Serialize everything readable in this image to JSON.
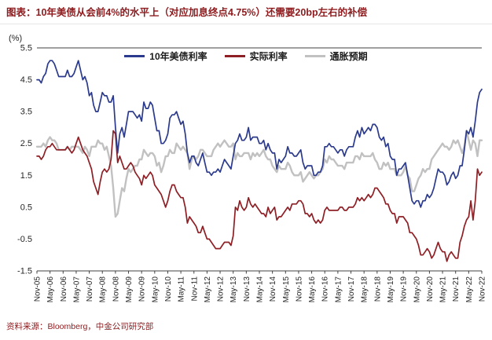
{
  "title": "图表：10年美债从会前4%的水平上（对应加息终点4.75%）还需要20bp左右的补偿",
  "source": "资料来源：Bloomberg，中金公司研究部",
  "colors": {
    "title_red": "#8E1B1E",
    "source_red": "#8E1B1E",
    "axis_line": "#404040",
    "tick_label": "#262626",
    "nominal_blue": "#2B3A8C",
    "real_red": "#8E1F25",
    "breakeven_gray": "#C1C1C1"
  },
  "chart_data": {
    "type": "line",
    "title": "10年美债从会前4%的水平上（对应加息终点4.75%）还需要20bp左右的补偿",
    "xlabel": "",
    "ylabel": "(%)",
    "ylim": [
      -1.5,
      5.5
    ],
    "yticks": [
      5.5,
      4.5,
      3.5,
      2.5,
      1.5,
      0.5,
      -0.5,
      -1.5
    ],
    "grid": false,
    "legend_position": "top-center",
    "x_label_every": 6,
    "x_frequency": "monthly",
    "x_tick_labels": [
      "Nov-05",
      "May-06",
      "Nov-06",
      "May-07",
      "Nov-07",
      "May-08",
      "Nov-08",
      "May-09",
      "Nov-09",
      "May-10",
      "Nov-10",
      "May-11",
      "Nov-11",
      "May-12",
      "Nov-12",
      "May-13",
      "Nov-13",
      "May-14",
      "Nov-14",
      "May-15",
      "Nov-15",
      "May-16",
      "Nov-16",
      "May-17",
      "Nov-17",
      "May-18",
      "Nov-18",
      "May-19",
      "Nov-19",
      "May-20",
      "Nov-20",
      "May-21",
      "Nov-21",
      "May-22",
      "Nov-22"
    ],
    "series": [
      {
        "name": "10年美债利率",
        "color": "#2B3A8C",
        "values": [
          4.5,
          4.5,
          4.4,
          4.6,
          4.7,
          5.0,
          5.1,
          5.1,
          5.0,
          4.8,
          4.6,
          4.6,
          4.6,
          4.6,
          4.8,
          4.6,
          4.6,
          4.7,
          4.9,
          5.1,
          4.8,
          4.5,
          4.6,
          4.4,
          4.0,
          4.1,
          3.7,
          3.5,
          3.5,
          3.8,
          4.1,
          4.0,
          4.0,
          3.8,
          3.8,
          4.0,
          3.0,
          2.2,
          2.8,
          3.0,
          2.7,
          3.1,
          3.5,
          3.5,
          3.5,
          3.4,
          3.3,
          3.4,
          3.2,
          3.8,
          3.6,
          3.6,
          3.8,
          3.7,
          3.3,
          2.9,
          2.9,
          2.5,
          2.5,
          2.6,
          2.8,
          3.3,
          3.4,
          3.4,
          3.5,
          3.3,
          3.1,
          3.2,
          2.8,
          2.2,
          1.9,
          2.1,
          2.1,
          1.9,
          1.8,
          2.0,
          2.2,
          1.9,
          1.6,
          1.6,
          1.5,
          1.6,
          1.6,
          1.7,
          1.6,
          1.8,
          2.0,
          1.9,
          1.8,
          1.7,
          2.1,
          2.5,
          2.6,
          2.8,
          2.6,
          2.6,
          2.7,
          3.0,
          2.6,
          2.7,
          2.7,
          2.7,
          2.5,
          2.5,
          2.6,
          2.3,
          2.5,
          2.3,
          2.2,
          2.2,
          1.7,
          2.0,
          1.9,
          2.0,
          2.1,
          2.4,
          2.2,
          2.2,
          2.1,
          2.1,
          2.2,
          2.3,
          1.9,
          1.7,
          1.8,
          1.8,
          1.8,
          1.5,
          1.5,
          1.6,
          1.6,
          1.8,
          2.4,
          2.4,
          2.5,
          2.4,
          2.4,
          2.3,
          2.2,
          2.3,
          2.3,
          2.1,
          2.3,
          2.4,
          2.4,
          2.4,
          2.7,
          2.9,
          2.7,
          3.0,
          2.8,
          2.9,
          3.0,
          2.9,
          3.1,
          3.1,
          3.0,
          2.7,
          2.6,
          2.7,
          2.4,
          2.5,
          2.1,
          2.0,
          2.0,
          1.5,
          1.7,
          1.7,
          1.8,
          1.9,
          1.5,
          1.1,
          0.7,
          0.6,
          0.7,
          0.7,
          0.5,
          0.7,
          0.7,
          0.9,
          0.8,
          0.9,
          1.1,
          1.4,
          1.7,
          1.6,
          1.6,
          1.5,
          1.2,
          1.3,
          1.5,
          1.6,
          1.4,
          1.5,
          1.8,
          1.8,
          2.3,
          2.9,
          2.8,
          3.0,
          2.7,
          3.2,
          3.8,
          4.1,
          4.2
        ]
      },
      {
        "name": "实际利率",
        "color": "#8E1F25",
        "values": [
          2.1,
          2.1,
          2.0,
          2.1,
          2.3,
          2.4,
          2.4,
          2.5,
          2.4,
          2.3,
          2.3,
          2.3,
          2.3,
          2.3,
          2.4,
          2.3,
          2.2,
          2.3,
          2.5,
          2.7,
          2.5,
          2.3,
          2.2,
          2.1,
          1.9,
          1.7,
          1.3,
          1.1,
          0.9,
          1.3,
          1.6,
          1.7,
          1.6,
          1.7,
          2.0,
          2.9,
          2.8,
          1.9,
          2.1,
          1.9,
          1.7,
          1.7,
          1.8,
          1.9,
          1.8,
          1.6,
          1.5,
          1.4,
          1.2,
          1.5,
          1.4,
          1.5,
          1.6,
          1.5,
          1.2,
          1.1,
          1.0,
          0.9,
          0.7,
          0.5,
          0.7,
          1.0,
          1.2,
          1.2,
          1.0,
          0.9,
          0.8,
          0.8,
          0.5,
          0.0,
          0.2,
          0.1,
          0.0,
          -0.1,
          -0.3,
          -0.3,
          -0.1,
          -0.3,
          -0.5,
          -0.5,
          -0.6,
          -0.7,
          -0.8,
          -0.8,
          -0.8,
          -0.7,
          -0.6,
          -0.6,
          -0.6,
          -0.7,
          -0.4,
          0.5,
          0.4,
          0.7,
          0.5,
          0.4,
          0.5,
          0.8,
          0.6,
          0.5,
          0.6,
          0.5,
          0.4,
          0.3,
          0.3,
          0.2,
          0.5,
          0.3,
          0.4,
          0.5,
          0.1,
          0.2,
          0.2,
          0.3,
          0.4,
          0.5,
          0.4,
          0.6,
          0.6,
          0.6,
          0.7,
          0.7,
          0.6,
          0.3,
          0.3,
          0.2,
          0.3,
          0.1,
          0.0,
          0.1,
          0.0,
          0.1,
          0.4,
          0.5,
          0.4,
          0.4,
          0.4,
          0.4,
          0.4,
          0.5,
          0.5,
          0.4,
          0.4,
          0.5,
          0.5,
          0.5,
          0.6,
          0.8,
          0.7,
          0.8,
          0.7,
          0.8,
          0.9,
          0.8,
          0.9,
          1.1,
          1.1,
          1.0,
          0.9,
          0.8,
          0.6,
          0.6,
          0.4,
          0.3,
          0.3,
          0.0,
          0.2,
          0.2,
          0.2,
          0.1,
          0.0,
          -0.3,
          -0.3,
          -0.4,
          -0.5,
          -0.7,
          -1.0,
          -1.0,
          -0.9,
          -0.8,
          -0.9,
          -1.1,
          -1.0,
          -0.8,
          -0.6,
          -0.8,
          -0.9,
          -0.9,
          -1.2,
          -1.0,
          -0.9,
          -1.0,
          -1.1,
          -1.1,
          -0.6,
          -0.4,
          -0.1,
          0.1,
          0.2,
          0.7,
          0.1,
          0.7,
          1.7,
          1.5,
          1.6
        ]
      },
      {
        "name": "通胀预期",
        "color": "#C1C1C1",
        "values": [
          2.4,
          2.4,
          2.4,
          2.5,
          2.4,
          2.6,
          2.7,
          2.6,
          2.6,
          2.5,
          2.3,
          2.3,
          2.3,
          2.3,
          2.4,
          2.3,
          2.4,
          2.4,
          2.4,
          2.4,
          2.3,
          2.2,
          2.4,
          2.3,
          2.1,
          2.4,
          2.4,
          2.4,
          2.6,
          2.5,
          2.5,
          2.3,
          2.4,
          2.1,
          1.8,
          1.1,
          0.2,
          0.3,
          0.7,
          1.1,
          1.0,
          1.4,
          1.7,
          1.6,
          1.7,
          1.8,
          1.8,
          2.0,
          2.0,
          2.3,
          2.2,
          2.1,
          2.2,
          2.2,
          2.1,
          1.8,
          1.9,
          1.6,
          1.8,
          2.1,
          2.1,
          2.3,
          2.2,
          2.2,
          2.5,
          2.4,
          2.3,
          2.4,
          2.3,
          2.2,
          1.7,
          2.0,
          2.1,
          2.0,
          2.1,
          2.3,
          2.3,
          2.2,
          2.1,
          2.1,
          2.1,
          2.3,
          2.4,
          2.5,
          2.4,
          2.5,
          2.6,
          2.5,
          2.4,
          2.4,
          2.5,
          2.0,
          2.2,
          2.1,
          2.1,
          2.2,
          2.2,
          2.2,
          2.0,
          2.2,
          2.1,
          2.2,
          2.1,
          2.2,
          2.3,
          2.1,
          2.0,
          2.0,
          1.8,
          1.7,
          1.6,
          1.8,
          1.7,
          1.7,
          1.7,
          1.9,
          1.8,
          1.6,
          1.5,
          1.5,
          1.5,
          1.6,
          1.3,
          1.4,
          1.5,
          1.6,
          1.5,
          1.4,
          1.5,
          1.5,
          1.6,
          1.7,
          2.0,
          1.9,
          2.1,
          2.0,
          2.0,
          1.9,
          1.8,
          1.8,
          1.8,
          1.7,
          1.9,
          1.9,
          1.9,
          1.9,
          2.1,
          2.1,
          2.0,
          2.2,
          2.1,
          2.1,
          2.1,
          2.1,
          2.2,
          2.0,
          1.9,
          1.7,
          1.7,
          1.9,
          1.8,
          1.9,
          1.7,
          1.7,
          1.7,
          1.5,
          1.5,
          1.5,
          1.6,
          1.8,
          1.5,
          1.4,
          1.0,
          1.0,
          1.2,
          1.4,
          1.5,
          1.7,
          1.6,
          1.7,
          1.7,
          2.0,
          2.1,
          2.2,
          2.3,
          2.4,
          2.5,
          2.4,
          2.4,
          2.3,
          2.4,
          2.6,
          2.5,
          2.6,
          2.4,
          2.2,
          2.4,
          2.9,
          2.6,
          2.3,
          2.6,
          2.5,
          2.1,
          2.6,
          2.6
        ]
      }
    ]
  }
}
